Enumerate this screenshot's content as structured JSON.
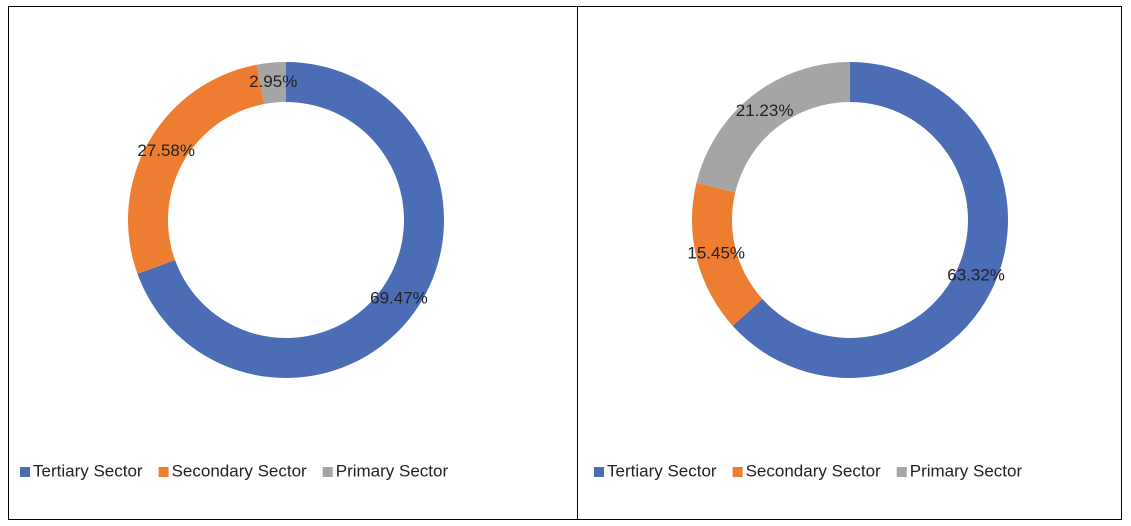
{
  "chart_data": [
    {
      "type": "donut",
      "categories": [
        "Tertiary Sector",
        "Secondary Sector",
        "Primary Sector"
      ],
      "values": [
        69.47,
        27.58,
        2.95
      ],
      "value_labels": [
        "69.47%",
        "27.58%",
        "2.95%"
      ],
      "colors": [
        "#4a6db5",
        "#ed7d31",
        "#a5a5a5"
      ],
      "legend": "bottom"
    },
    {
      "type": "donut",
      "categories": [
        "Tertiary Sector",
        "Secondary Sector",
        "Primary Sector"
      ],
      "values": [
        63.32,
        15.45,
        21.23
      ],
      "value_labels": [
        "63.32%",
        "15.45%",
        "21.23%"
      ],
      "colors": [
        "#4a6db5",
        "#ed7d31",
        "#a5a5a5"
      ],
      "legend": "bottom"
    }
  ]
}
